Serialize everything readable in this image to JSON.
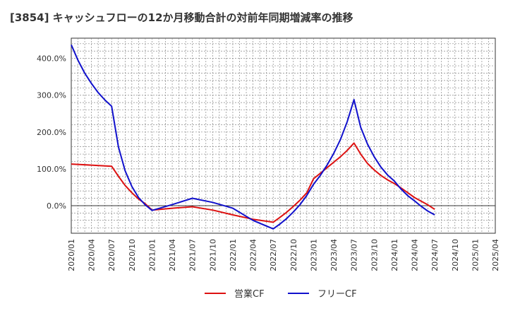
{
  "title": "[3854]  キャッシュフローの12か月移動合計の対前年同期増減率の推移",
  "chart_data": {
    "type": "line",
    "title": "[3854]  キャッシュフローの12か月移動合計の対前年同期増減率の推移",
    "xlabel": "",
    "ylabel": "",
    "x_ticks": [
      "2020/01",
      "2020/04",
      "2020/07",
      "2020/10",
      "2021/01",
      "2021/04",
      "2021/07",
      "2021/10",
      "2022/01",
      "2022/04",
      "2022/07",
      "2022/10",
      "2023/01",
      "2023/04",
      "2023/07",
      "2023/10",
      "2024/01",
      "2024/04",
      "2024/07",
      "2024/10",
      "2025/01",
      "2025/04"
    ],
    "y_ticks": [
      {
        "value": 0,
        "label": "0.0%"
      },
      {
        "value": 100,
        "label": "100.0%"
      },
      {
        "value": 200,
        "label": "200.0%"
      },
      {
        "value": 300,
        "label": "300.0%"
      },
      {
        "value": 400,
        "label": "400.0%"
      }
    ],
    "ylim": [
      -75,
      455
    ],
    "grid": true,
    "legend_position": "bottom",
    "series": [
      {
        "name": "営業CF",
        "color": "#dd1111",
        "values": [
          {
            "x": "2020/01",
            "y": 113
          },
          {
            "x": "2020/07",
            "y": 107
          },
          {
            "x": "2020/08",
            "y": 80
          },
          {
            "x": "2020/09",
            "y": 55
          },
          {
            "x": "2020/10",
            "y": 35
          },
          {
            "x": "2020/11",
            "y": 18
          },
          {
            "x": "2020/12",
            "y": 5
          },
          {
            "x": "2021/01",
            "y": -12
          },
          {
            "x": "2021/04",
            "y": -7
          },
          {
            "x": "2021/07",
            "y": -3
          },
          {
            "x": "2021/10",
            "y": -12
          },
          {
            "x": "2022/01",
            "y": -25
          },
          {
            "x": "2022/04",
            "y": -37
          },
          {
            "x": "2022/07",
            "y": -45
          },
          {
            "x": "2022/08",
            "y": -32
          },
          {
            "x": "2022/09",
            "y": -18
          },
          {
            "x": "2022/10",
            "y": -2
          },
          {
            "x": "2022/11",
            "y": 15
          },
          {
            "x": "2022/12",
            "y": 35
          },
          {
            "x": "2023/01",
            "y": 73
          },
          {
            "x": "2023/02",
            "y": 88
          },
          {
            "x": "2023/03",
            "y": 103
          },
          {
            "x": "2023/04",
            "y": 118
          },
          {
            "x": "2023/05",
            "y": 133
          },
          {
            "x": "2023/06",
            "y": 150
          },
          {
            "x": "2023/07",
            "y": 170
          },
          {
            "x": "2023/08",
            "y": 140
          },
          {
            "x": "2023/09",
            "y": 115
          },
          {
            "x": "2023/10",
            "y": 97
          },
          {
            "x": "2023/11",
            "y": 82
          },
          {
            "x": "2023/12",
            "y": 70
          },
          {
            "x": "2024/01",
            "y": 60
          },
          {
            "x": "2024/02",
            "y": 48
          },
          {
            "x": "2024/03",
            "y": 35
          },
          {
            "x": "2024/04",
            "y": 22
          },
          {
            "x": "2024/05",
            "y": 12
          },
          {
            "x": "2024/06",
            "y": 2
          },
          {
            "x": "2024/07",
            "y": -10
          }
        ]
      },
      {
        "name": "フリーCF",
        "color": "#1111cc",
        "values": [
          {
            "x": "2020/01",
            "y": 437
          },
          {
            "x": "2020/02",
            "y": 395
          },
          {
            "x": "2020/03",
            "y": 360
          },
          {
            "x": "2020/04",
            "y": 332
          },
          {
            "x": "2020/05",
            "y": 307
          },
          {
            "x": "2020/06",
            "y": 287
          },
          {
            "x": "2020/07",
            "y": 270
          },
          {
            "x": "2020/08",
            "y": 160
          },
          {
            "x": "2020/09",
            "y": 95
          },
          {
            "x": "2020/10",
            "y": 52
          },
          {
            "x": "2020/11",
            "y": 22
          },
          {
            "x": "2020/12",
            "y": 2
          },
          {
            "x": "2021/01",
            "y": -13
          },
          {
            "x": "2021/04",
            "y": 3
          },
          {
            "x": "2021/07",
            "y": 20
          },
          {
            "x": "2021/10",
            "y": 9
          },
          {
            "x": "2022/01",
            "y": -7
          },
          {
            "x": "2022/04",
            "y": -40
          },
          {
            "x": "2022/07",
            "y": -63
          },
          {
            "x": "2022/08",
            "y": -50
          },
          {
            "x": "2022/09",
            "y": -35
          },
          {
            "x": "2022/10",
            "y": -17
          },
          {
            "x": "2022/11",
            "y": 3
          },
          {
            "x": "2022/12",
            "y": 28
          },
          {
            "x": "2023/01",
            "y": 58
          },
          {
            "x": "2023/02",
            "y": 82
          },
          {
            "x": "2023/03",
            "y": 110
          },
          {
            "x": "2023/04",
            "y": 142
          },
          {
            "x": "2023/05",
            "y": 180
          },
          {
            "x": "2023/06",
            "y": 228
          },
          {
            "x": "2023/07",
            "y": 288
          },
          {
            "x": "2023/08",
            "y": 213
          },
          {
            "x": "2023/09",
            "y": 168
          },
          {
            "x": "2023/10",
            "y": 133
          },
          {
            "x": "2023/11",
            "y": 105
          },
          {
            "x": "2023/12",
            "y": 83
          },
          {
            "x": "2024/01",
            "y": 67
          },
          {
            "x": "2024/02",
            "y": 45
          },
          {
            "x": "2024/03",
            "y": 27
          },
          {
            "x": "2024/04",
            "y": 13
          },
          {
            "x": "2024/05",
            "y": -2
          },
          {
            "x": "2024/06",
            "y": -15
          },
          {
            "x": "2024/07",
            "y": -25
          }
        ]
      }
    ]
  }
}
